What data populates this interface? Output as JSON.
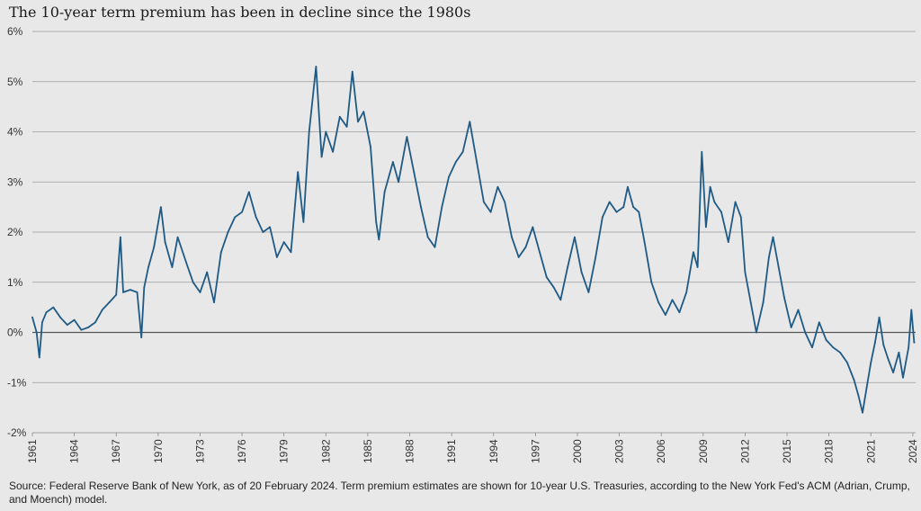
{
  "chart_data": {
    "type": "line",
    "title": "The 10-year term premium has been in decline since the 1980s",
    "xlabel": "",
    "ylabel": "",
    "ylim": [
      -2,
      6
    ],
    "xlim": [
      1961,
      2024.2
    ],
    "grid": true,
    "y_ticks": [
      "6%",
      "5%",
      "4%",
      "3%",
      "2%",
      "1%",
      "0%",
      "-1%",
      "-2%"
    ],
    "y_tick_values": [
      6,
      5,
      4,
      3,
      2,
      1,
      0,
      -1,
      -2
    ],
    "x_ticks": [
      "1961",
      "1964",
      "1967",
      "1970",
      "1973",
      "1976",
      "1979",
      "1982",
      "1985",
      "1988",
      "1991",
      "1994",
      "1997",
      "2000",
      "2003",
      "2006",
      "2009",
      "2012",
      "2015",
      "2018",
      "2021",
      "2024"
    ],
    "x_tick_values": [
      1961,
      1964,
      1967,
      1970,
      1973,
      1976,
      1979,
      1982,
      1985,
      1988,
      1991,
      1994,
      1997,
      2000,
      2003,
      2006,
      2009,
      2012,
      2015,
      2018,
      2021,
      2024
    ],
    "line_color": "#1f5a85",
    "series": [
      {
        "name": "",
        "points": [
          [
            1961.0,
            0.3
          ],
          [
            1961.3,
            0.0
          ],
          [
            1961.5,
            -0.5
          ],
          [
            1961.7,
            0.2
          ],
          [
            1962.0,
            0.4
          ],
          [
            1962.5,
            0.5
          ],
          [
            1963.0,
            0.3
          ],
          [
            1963.5,
            0.15
          ],
          [
            1964.0,
            0.25
          ],
          [
            1964.5,
            0.05
          ],
          [
            1965.0,
            0.1
          ],
          [
            1965.5,
            0.2
          ],
          [
            1966.0,
            0.45
          ],
          [
            1966.5,
            0.6
          ],
          [
            1967.0,
            0.75
          ],
          [
            1967.3,
            1.9
          ],
          [
            1967.5,
            0.8
          ],
          [
            1968.0,
            0.85
          ],
          [
            1968.5,
            0.8
          ],
          [
            1968.8,
            -0.1
          ],
          [
            1969.0,
            0.9
          ],
          [
            1969.3,
            1.3
          ],
          [
            1969.7,
            1.7
          ],
          [
            1970.2,
            2.5
          ],
          [
            1970.5,
            1.8
          ],
          [
            1971.0,
            1.3
          ],
          [
            1971.4,
            1.9
          ],
          [
            1972.0,
            1.4
          ],
          [
            1972.5,
            1.0
          ],
          [
            1973.0,
            0.8
          ],
          [
            1973.5,
            1.2
          ],
          [
            1974.0,
            0.6
          ],
          [
            1974.5,
            1.6
          ],
          [
            1975.0,
            2.0
          ],
          [
            1975.5,
            2.3
          ],
          [
            1976.0,
            2.4
          ],
          [
            1976.5,
            2.8
          ],
          [
            1977.0,
            2.3
          ],
          [
            1977.5,
            2.0
          ],
          [
            1978.0,
            2.1
          ],
          [
            1978.5,
            1.5
          ],
          [
            1979.0,
            1.8
          ],
          [
            1979.5,
            1.6
          ],
          [
            1980.0,
            3.2
          ],
          [
            1980.4,
            2.2
          ],
          [
            1980.8,
            4.0
          ],
          [
            1981.3,
            5.3
          ],
          [
            1981.7,
            3.5
          ],
          [
            1982.0,
            4.0
          ],
          [
            1982.5,
            3.6
          ],
          [
            1983.0,
            4.3
          ],
          [
            1983.5,
            4.1
          ],
          [
            1983.9,
            5.2
          ],
          [
            1984.3,
            4.2
          ],
          [
            1984.7,
            4.4
          ],
          [
            1985.2,
            3.7
          ],
          [
            1985.6,
            2.2
          ],
          [
            1985.8,
            1.85
          ],
          [
            1986.2,
            2.8
          ],
          [
            1986.8,
            3.4
          ],
          [
            1987.2,
            3.0
          ],
          [
            1987.8,
            3.9
          ],
          [
            1988.3,
            3.2
          ],
          [
            1988.8,
            2.5
          ],
          [
            1989.3,
            1.9
          ],
          [
            1989.8,
            1.7
          ],
          [
            1990.3,
            2.5
          ],
          [
            1990.8,
            3.1
          ],
          [
            1991.3,
            3.4
          ],
          [
            1991.8,
            3.6
          ],
          [
            1992.3,
            4.2
          ],
          [
            1992.8,
            3.4
          ],
          [
            1993.3,
            2.6
          ],
          [
            1993.8,
            2.4
          ],
          [
            1994.3,
            2.9
          ],
          [
            1994.8,
            2.6
          ],
          [
            1995.3,
            1.9
          ],
          [
            1995.8,
            1.5
          ],
          [
            1996.3,
            1.7
          ],
          [
            1996.8,
            2.1
          ],
          [
            1997.3,
            1.6
          ],
          [
            1997.8,
            1.1
          ],
          [
            1998.3,
            0.9
          ],
          [
            1998.8,
            0.65
          ],
          [
            1999.3,
            1.3
          ],
          [
            1999.8,
            1.9
          ],
          [
            2000.3,
            1.2
          ],
          [
            2000.8,
            0.8
          ],
          [
            2001.3,
            1.5
          ],
          [
            2001.8,
            2.3
          ],
          [
            2002.3,
            2.6
          ],
          [
            2002.8,
            2.4
          ],
          [
            2003.3,
            2.5
          ],
          [
            2003.6,
            2.9
          ],
          [
            2004.0,
            2.5
          ],
          [
            2004.4,
            2.4
          ],
          [
            2004.8,
            1.8
          ],
          [
            2005.3,
            1.0
          ],
          [
            2005.8,
            0.6
          ],
          [
            2006.3,
            0.35
          ],
          [
            2006.8,
            0.65
          ],
          [
            2007.3,
            0.4
          ],
          [
            2007.8,
            0.8
          ],
          [
            2008.3,
            1.6
          ],
          [
            2008.6,
            1.3
          ],
          [
            2008.9,
            3.6
          ],
          [
            2009.2,
            2.1
          ],
          [
            2009.5,
            2.9
          ],
          [
            2009.8,
            2.6
          ],
          [
            2010.3,
            2.4
          ],
          [
            2010.8,
            1.8
          ],
          [
            2011.3,
            2.6
          ],
          [
            2011.7,
            2.3
          ],
          [
            2012.0,
            1.2
          ],
          [
            2012.4,
            0.6
          ],
          [
            2012.8,
            0.0
          ],
          [
            2013.3,
            0.6
          ],
          [
            2013.7,
            1.5
          ],
          [
            2014.0,
            1.9
          ],
          [
            2014.4,
            1.3
          ],
          [
            2014.8,
            0.7
          ],
          [
            2015.3,
            0.1
          ],
          [
            2015.8,
            0.45
          ],
          [
            2016.3,
            0.0
          ],
          [
            2016.8,
            -0.3
          ],
          [
            2017.3,
            0.2
          ],
          [
            2017.8,
            -0.15
          ],
          [
            2018.3,
            -0.3
          ],
          [
            2018.8,
            -0.4
          ],
          [
            2019.3,
            -0.6
          ],
          [
            2019.8,
            -0.95
          ],
          [
            2020.1,
            -1.25
          ],
          [
            2020.4,
            -1.6
          ],
          [
            2020.7,
            -1.1
          ],
          [
            2021.0,
            -0.6
          ],
          [
            2021.3,
            -0.2
          ],
          [
            2021.6,
            0.3
          ],
          [
            2021.9,
            -0.25
          ],
          [
            2022.2,
            -0.5
          ],
          [
            2022.6,
            -0.8
          ],
          [
            2023.0,
            -0.4
          ],
          [
            2023.3,
            -0.9
          ],
          [
            2023.7,
            -0.3
          ],
          [
            2023.9,
            0.45
          ],
          [
            2024.1,
            -0.2
          ]
        ]
      }
    ]
  },
  "footer": {
    "source": "Source: Federal Reserve Bank of New York, as of 20 February 2024. Term premium estimates are shown for 10-year U.S. Treasuries, according to the New York Fed's ACM (Adrian, Crump, and Moench) model."
  }
}
